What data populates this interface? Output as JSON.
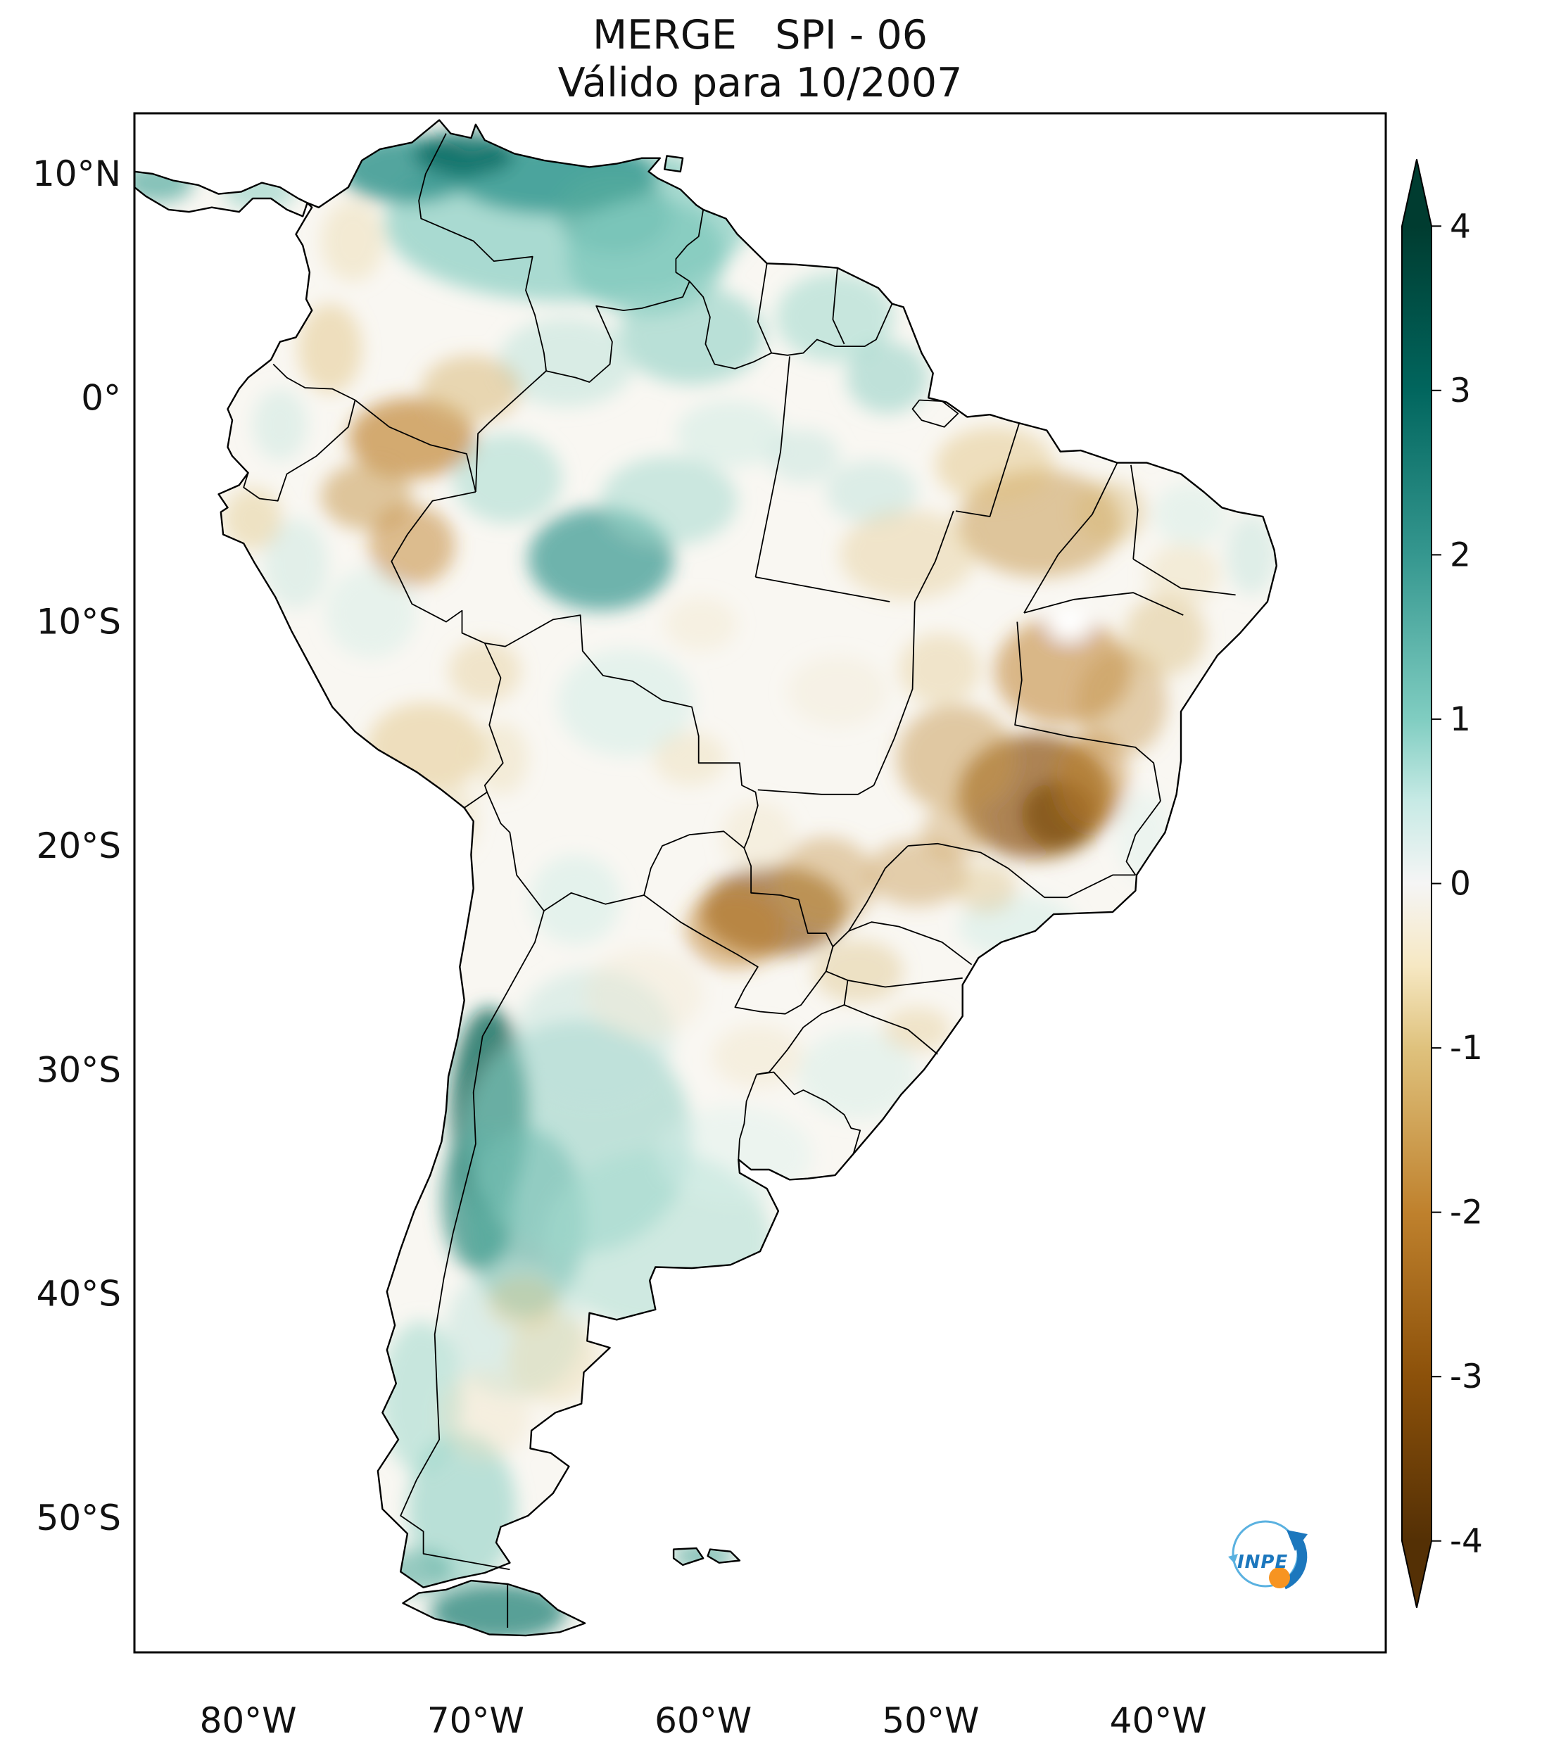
{
  "figure": {
    "title": "MERGE   SPI - 06",
    "subtitle": "Válido para 10/2007"
  },
  "axes": {
    "lat_ticks": [
      {
        "label": "10°N",
        "value": 10
      },
      {
        "label": "0°",
        "value": 0
      },
      {
        "label": "10°S",
        "value": -10
      },
      {
        "label": "20°S",
        "value": -20
      },
      {
        "label": "30°S",
        "value": -30
      },
      {
        "label": "40°S",
        "value": -40
      },
      {
        "label": "50°S",
        "value": -50
      }
    ],
    "lon_ticks": [
      {
        "label": "80°W",
        "value": -80
      },
      {
        "label": "70°W",
        "value": -70
      },
      {
        "label": "60°W",
        "value": -60
      },
      {
        "label": "50°W",
        "value": -50
      },
      {
        "label": "40°W",
        "value": -40
      }
    ]
  },
  "colorbar": {
    "min": -4,
    "max": 4,
    "colormap": "BrBG",
    "ticks": [
      {
        "label": "4",
        "value": 4
      },
      {
        "label": "3",
        "value": 3
      },
      {
        "label": "2",
        "value": 2
      },
      {
        "label": "1",
        "value": 1
      },
      {
        "label": "0",
        "value": 0
      },
      {
        "label": "-1",
        "value": -1
      },
      {
        "label": "-2",
        "value": -2
      },
      {
        "label": "-3",
        "value": -3
      },
      {
        "label": "-4",
        "value": -4
      }
    ],
    "colors": {
      "pos4": "#003c30",
      "pos3": "#01665e",
      "pos2": "#35978f",
      "pos1": "#80cdc1",
      "pos05": "#c7eae5",
      "zero": "#f5f5f5",
      "neg05": "#f6e8c3",
      "neg1": "#dfc27d",
      "neg2": "#bf812d",
      "neg3": "#8c510a",
      "neg4": "#543005"
    }
  },
  "logo": {
    "text": "INPE",
    "accent_blue": "#1c77bd",
    "light_blue": "#5ab1e0",
    "orange": "#f79421"
  }
}
